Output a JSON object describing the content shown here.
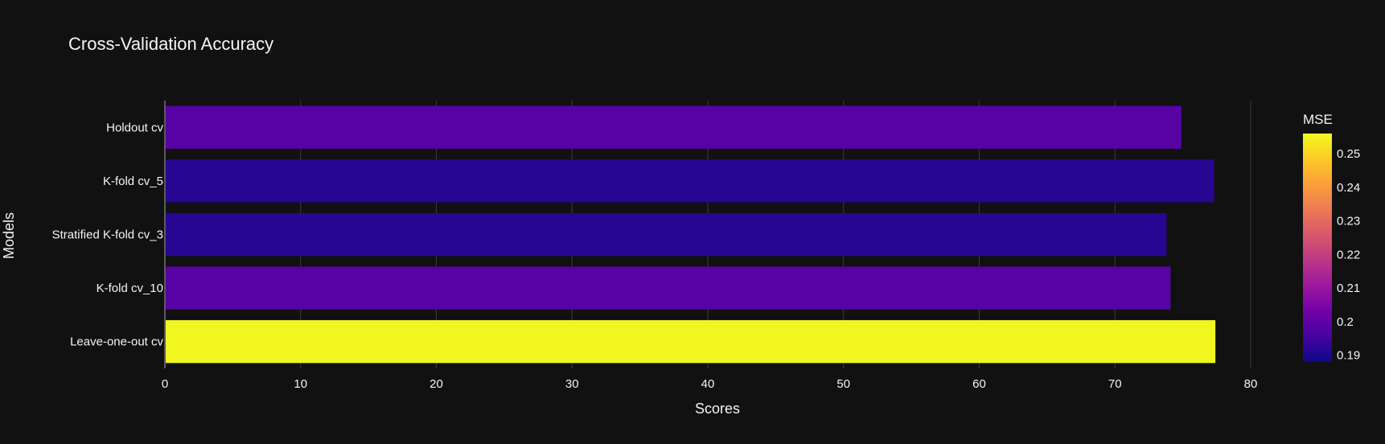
{
  "chart_data": {
    "type": "bar",
    "orientation": "horizontal",
    "title": "Cross-Validation Accuracy",
    "xlabel": "Scores",
    "ylabel": "Models",
    "xlim": [
      0,
      80
    ],
    "x_ticks": [
      "0",
      "10",
      "20",
      "30",
      "40",
      "50",
      "60",
      "70",
      "80"
    ],
    "categories": [
      "Holdout cv",
      "K-fold cv_5",
      "Stratified K-fold cv_3",
      "K-fold cv_10",
      "Leave-one-out cv"
    ],
    "values": [
      74.9,
      77.3,
      73.8,
      74.1,
      77.4
    ],
    "color_values": [
      0.1985,
      0.1915,
      0.1915,
      0.1985,
      0.2555
    ],
    "colorbar": {
      "title": "MSE",
      "range": [
        0.188,
        0.256
      ],
      "tick_labels": [
        "0.19",
        "0.2",
        "0.21",
        "0.22",
        "0.23",
        "0.24",
        "0.25"
      ],
      "colors": [
        "#0d0887",
        "#46039f",
        "#7201a8",
        "#9c179e",
        "#bd3786",
        "#d8576b",
        "#ed7953",
        "#fb9f3a",
        "#fdca26",
        "#f0f921"
      ]
    },
    "grid": true,
    "background": "#111111",
    "text_color": "#f2f5fa"
  }
}
